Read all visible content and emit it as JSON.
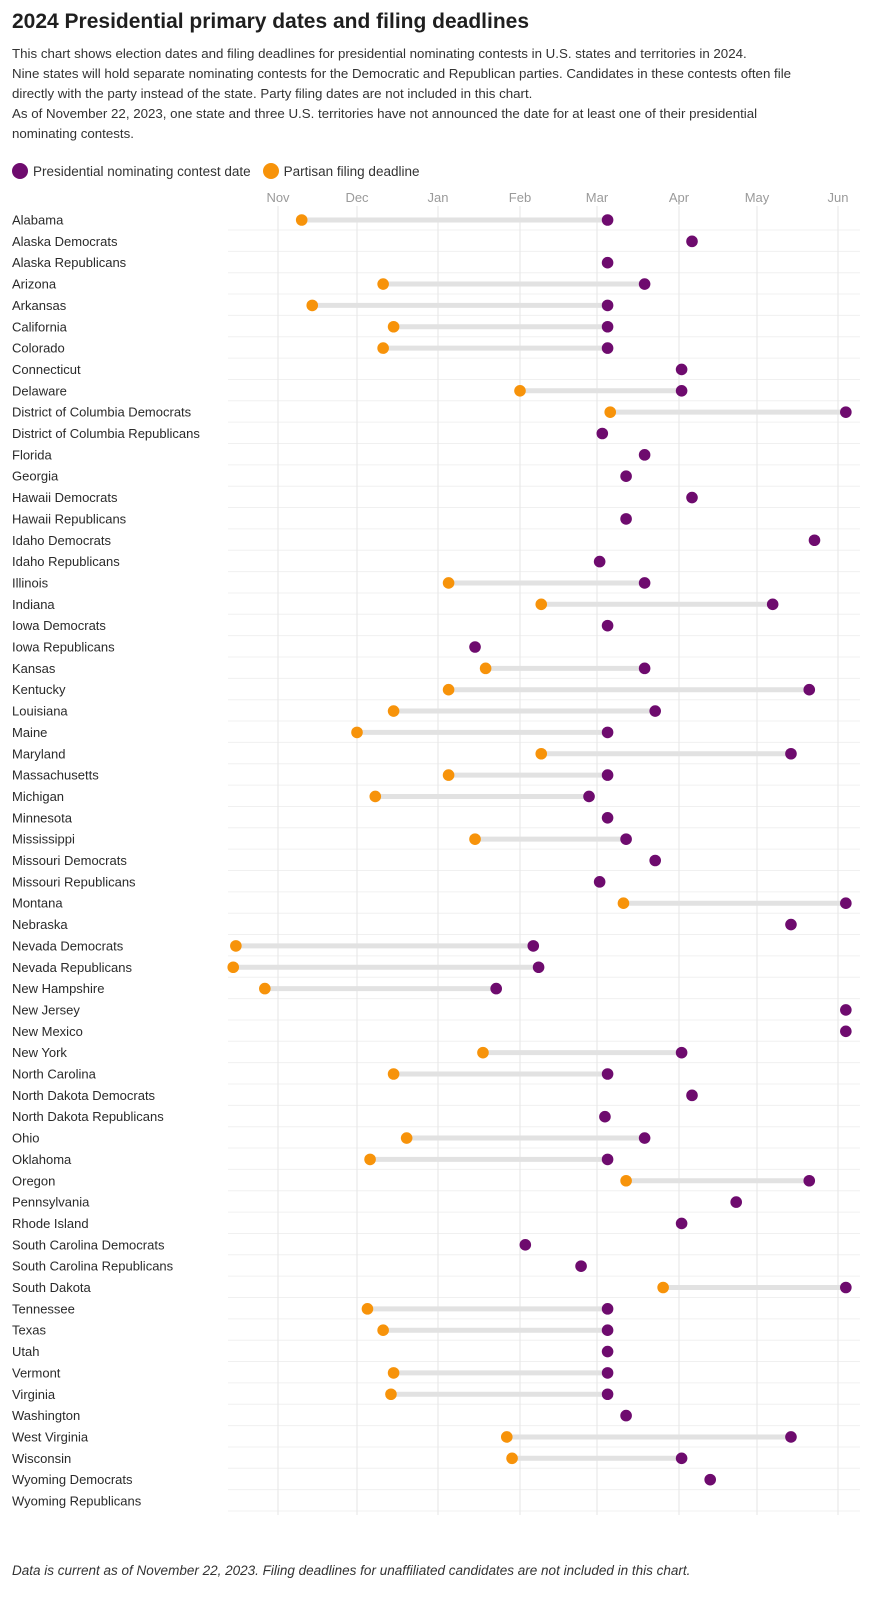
{
  "title": "2024 Presidential primary dates and filing deadlines",
  "description": [
    "This chart shows election dates and filing deadlines for presidential nominating contests in U.S. states and territories in 2024.",
    "Nine states will hold separate nominating contests for the Democratic and Republican parties. Candidates in these contests often file",
    "directly with the party instead of the state. Party filing dates are not included in this chart.",
    "As of November 22, 2023, one state and three U.S. territories have not announced the date for at least one of their presidential",
    "nominating contests."
  ],
  "legend": {
    "contest_label": "Presidential nominating contest date",
    "filing_label": "Partisan filing deadline"
  },
  "colors": {
    "contest": "#6e0b6e",
    "filing": "#f7930a",
    "connector": "#e2e2e2",
    "gridline": "#e6e6e6"
  },
  "footnote": "Data is current as of November 22, 2023. Filing deadlines for unaffiliated candidates are not included in this chart.",
  "chart_data": {
    "type": "scatter",
    "x_axis": {
      "type": "date",
      "range": [
        "2023-10-20",
        "2024-06-03"
      ],
      "ticks": [
        {
          "label": "Nov",
          "date": "2023-11-01"
        },
        {
          "label": "Dec",
          "date": "2023-12-01"
        },
        {
          "label": "Jan",
          "date": "2024-01-01"
        },
        {
          "label": "Feb",
          "date": "2024-02-01"
        },
        {
          "label": "Mar",
          "date": "2024-03-01"
        },
        {
          "label": "Apr",
          "date": "2024-04-01"
        },
        {
          "label": "May",
          "date": "2024-05-01"
        },
        {
          "label": "Jun",
          "date": "2024-06-01"
        }
      ]
    },
    "grid": true,
    "rows": [
      {
        "name": "Alabama",
        "filing": "2023-11-10",
        "contest": "2024-03-05"
      },
      {
        "name": "Alaska Democrats",
        "filing": null,
        "contest": "2024-04-06"
      },
      {
        "name": "Alaska Republicans",
        "filing": null,
        "contest": "2024-03-05"
      },
      {
        "name": "Arizona",
        "filing": "2023-12-11",
        "contest": "2024-03-19"
      },
      {
        "name": "Arkansas",
        "filing": "2023-11-14",
        "contest": "2024-03-05"
      },
      {
        "name": "California",
        "filing": "2023-12-15",
        "contest": "2024-03-05"
      },
      {
        "name": "Colorado",
        "filing": "2023-12-11",
        "contest": "2024-03-05"
      },
      {
        "name": "Connecticut",
        "filing": null,
        "contest": "2024-04-02"
      },
      {
        "name": "Delaware",
        "filing": "2024-02-01",
        "contest": "2024-04-02"
      },
      {
        "name": "District of Columbia Democrats",
        "filing": "2024-03-06",
        "contest": "2024-06-04"
      },
      {
        "name": "District of Columbia Republicans",
        "filing": null,
        "contest": "2024-03-03"
      },
      {
        "name": "Florida",
        "filing": null,
        "contest": "2024-03-19"
      },
      {
        "name": "Georgia",
        "filing": null,
        "contest": "2024-03-12"
      },
      {
        "name": "Hawaii Democrats",
        "filing": null,
        "contest": "2024-04-06"
      },
      {
        "name": "Hawaii Republicans",
        "filing": null,
        "contest": "2024-03-12"
      },
      {
        "name": "Idaho Democrats",
        "filing": null,
        "contest": "2024-05-23"
      },
      {
        "name": "Idaho Republicans",
        "filing": null,
        "contest": "2024-03-02"
      },
      {
        "name": "Illinois",
        "filing": "2024-01-05",
        "contest": "2024-03-19"
      },
      {
        "name": "Indiana",
        "filing": "2024-02-09",
        "contest": "2024-05-07"
      },
      {
        "name": "Iowa Democrats",
        "filing": null,
        "contest": "2024-03-05"
      },
      {
        "name": "Iowa Republicans",
        "filing": null,
        "contest": "2024-01-15"
      },
      {
        "name": "Kansas",
        "filing": "2024-01-19",
        "contest": "2024-03-19"
      },
      {
        "name": "Kentucky",
        "filing": "2024-01-05",
        "contest": "2024-05-21"
      },
      {
        "name": "Louisiana",
        "filing": "2023-12-15",
        "contest": "2024-03-23"
      },
      {
        "name": "Maine",
        "filing": "2023-12-01",
        "contest": "2024-03-05"
      },
      {
        "name": "Maryland",
        "filing": "2024-02-09",
        "contest": "2024-05-14"
      },
      {
        "name": "Massachusetts",
        "filing": "2024-01-05",
        "contest": "2024-03-05"
      },
      {
        "name": "Michigan",
        "filing": "2023-12-08",
        "contest": "2024-02-27"
      },
      {
        "name": "Minnesota",
        "filing": null,
        "contest": "2024-03-05"
      },
      {
        "name": "Mississippi",
        "filing": "2024-01-15",
        "contest": "2024-03-12"
      },
      {
        "name": "Missouri Democrats",
        "filing": null,
        "contest": "2024-03-23"
      },
      {
        "name": "Missouri Republicans",
        "filing": null,
        "contest": "2024-03-02"
      },
      {
        "name": "Montana",
        "filing": "2024-03-11",
        "contest": "2024-06-04"
      },
      {
        "name": "Nebraska",
        "filing": null,
        "contest": "2024-05-14"
      },
      {
        "name": "Nevada Democrats",
        "filing": "2023-10-16",
        "contest": "2024-02-06"
      },
      {
        "name": "Nevada Republicans",
        "filing": "2023-10-15",
        "contest": "2024-02-08"
      },
      {
        "name": "New Hampshire",
        "filing": "2023-10-27",
        "contest": "2024-01-23"
      },
      {
        "name": "New Jersey",
        "filing": null,
        "contest": "2024-06-04"
      },
      {
        "name": "New Mexico",
        "filing": null,
        "contest": "2024-06-04"
      },
      {
        "name": "New York",
        "filing": "2024-01-18",
        "contest": "2024-04-02"
      },
      {
        "name": "North Carolina",
        "filing": "2023-12-15",
        "contest": "2024-03-05"
      },
      {
        "name": "North Dakota Democrats",
        "filing": null,
        "contest": "2024-04-06"
      },
      {
        "name": "North Dakota Republicans",
        "filing": null,
        "contest": "2024-03-04"
      },
      {
        "name": "Ohio",
        "filing": "2023-12-20",
        "contest": "2024-03-19"
      },
      {
        "name": "Oklahoma",
        "filing": "2023-12-06",
        "contest": "2024-03-05"
      },
      {
        "name": "Oregon",
        "filing": "2024-03-12",
        "contest": "2024-05-21"
      },
      {
        "name": "Pennsylvania",
        "filing": null,
        "contest": "2024-04-23"
      },
      {
        "name": "Rhode Island",
        "filing": null,
        "contest": "2024-04-02"
      },
      {
        "name": "South Carolina Democrats",
        "filing": null,
        "contest": "2024-02-03"
      },
      {
        "name": "South Carolina Republicans",
        "filing": null,
        "contest": "2024-02-24"
      },
      {
        "name": "South Dakota",
        "filing": "2024-03-26",
        "contest": "2024-06-04"
      },
      {
        "name": "Tennessee",
        "filing": "2023-12-05",
        "contest": "2024-03-05"
      },
      {
        "name": "Texas",
        "filing": "2023-12-11",
        "contest": "2024-03-05"
      },
      {
        "name": "Utah",
        "filing": null,
        "contest": "2024-03-05"
      },
      {
        "name": "Vermont",
        "filing": "2023-12-15",
        "contest": "2024-03-05"
      },
      {
        "name": "Virginia",
        "filing": "2023-12-14",
        "contest": "2024-03-05"
      },
      {
        "name": "Washington",
        "filing": null,
        "contest": "2024-03-12"
      },
      {
        "name": "West Virginia",
        "filing": "2024-01-27",
        "contest": "2024-05-14"
      },
      {
        "name": "Wisconsin",
        "filing": "2024-01-29",
        "contest": "2024-04-02"
      },
      {
        "name": "Wyoming Democrats",
        "filing": null,
        "contest": "2024-04-13"
      },
      {
        "name": "Wyoming Republicans",
        "filing": null,
        "contest": null
      }
    ]
  }
}
